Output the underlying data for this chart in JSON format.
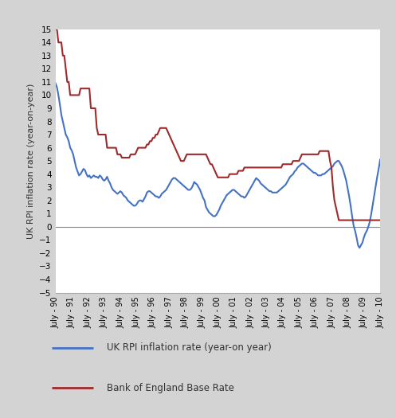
{
  "ylabel": "UK RPI inflation rate (year-on-year)",
  "plot_bg_color": "#ffffff",
  "outer_bg_color": "#d3d3d3",
  "rpi_color": "#4472C4",
  "boe_color": "#9E2A2B",
  "ylim": [
    -5,
    15
  ],
  "yticks": [
    -5,
    -4,
    -3,
    -2,
    -1,
    0,
    1,
    2,
    3,
    4,
    5,
    6,
    7,
    8,
    9,
    10,
    11,
    12,
    13,
    14,
    15
  ],
  "xtick_labels": [
    "July - 90",
    "July - 91",
    "July - 92",
    "July - 93",
    "July - 94",
    "July - 95",
    "July - 96",
    "July - 97",
    "July - 98",
    "July - 99",
    "July - 00",
    "July - 01",
    "July - 02",
    "July - 03",
    "July - 04",
    "July - 05",
    "July - 06",
    "July - 07",
    "July - 08",
    "July - 09",
    "July - 10"
  ],
  "legend_rpi": "UK RPI inflation rate (year-on year)",
  "legend_boe": "Bank of England Base Rate",
  "rpi_data": [
    10.9,
    10.6,
    10.0,
    9.3,
    8.5,
    8.0,
    7.5,
    7.0,
    6.8,
    6.5,
    6.0,
    5.8,
    5.5,
    5.0,
    4.5,
    4.2,
    3.9,
    4.0,
    4.2,
    4.4,
    4.3,
    4.0,
    3.8,
    3.9,
    3.7,
    3.8,
    3.9,
    3.8,
    3.8,
    3.7,
    3.9,
    3.8,
    3.6,
    3.5,
    3.6,
    3.8,
    3.5,
    3.3,
    3.0,
    2.8,
    2.7,
    2.6,
    2.5,
    2.6,
    2.7,
    2.6,
    2.4,
    2.3,
    2.2,
    2.0,
    1.9,
    1.8,
    1.7,
    1.6,
    1.6,
    1.7,
    1.9,
    2.0,
    2.0,
    1.9,
    2.1,
    2.3,
    2.6,
    2.7,
    2.7,
    2.6,
    2.5,
    2.4,
    2.3,
    2.3,
    2.2,
    2.3,
    2.5,
    2.6,
    2.7,
    2.8,
    3.0,
    3.2,
    3.4,
    3.6,
    3.7,
    3.7,
    3.6,
    3.5,
    3.4,
    3.3,
    3.2,
    3.1,
    3.0,
    2.9,
    2.8,
    2.8,
    2.9,
    3.1,
    3.4,
    3.3,
    3.2,
    3.0,
    2.8,
    2.5,
    2.2,
    2.0,
    1.5,
    1.3,
    1.1,
    1.0,
    0.9,
    0.8,
    0.8,
    0.9,
    1.1,
    1.3,
    1.6,
    1.8,
    2.0,
    2.2,
    2.4,
    2.5,
    2.6,
    2.7,
    2.8,
    2.8,
    2.7,
    2.6,
    2.5,
    2.4,
    2.3,
    2.3,
    2.2,
    2.3,
    2.5,
    2.7,
    2.9,
    3.1,
    3.3,
    3.5,
    3.7,
    3.6,
    3.5,
    3.3,
    3.2,
    3.1,
    3.0,
    2.9,
    2.8,
    2.7,
    2.7,
    2.6,
    2.6,
    2.6,
    2.6,
    2.7,
    2.8,
    2.9,
    3.0,
    3.1,
    3.2,
    3.4,
    3.6,
    3.8,
    3.9,
    4.0,
    4.2,
    4.3,
    4.5,
    4.6,
    4.7,
    4.8,
    4.8,
    4.7,
    4.6,
    4.5,
    4.4,
    4.3,
    4.2,
    4.1,
    4.1,
    4.0,
    3.9,
    3.9,
    3.9,
    4.0,
    4.0,
    4.1,
    4.2,
    4.3,
    4.4,
    4.5,
    4.6,
    4.8,
    4.9,
    5.0,
    5.0,
    4.8,
    4.6,
    4.3,
    3.9,
    3.5,
    2.9,
    2.3,
    1.6,
    0.8,
    0.1,
    -0.3,
    -0.8,
    -1.4,
    -1.6,
    -1.4,
    -1.2,
    -0.8,
    -0.5,
    -0.3,
    0.0,
    0.4,
    1.0,
    1.7,
    2.4,
    3.1,
    3.8,
    4.4,
    5.1
  ],
  "boe_data": [
    15.0,
    15.0,
    14.0,
    14.0,
    14.0,
    13.0,
    13.0,
    12.0,
    11.0,
    11.0,
    10.0,
    10.0,
    10.0,
    10.0,
    10.0,
    10.0,
    10.0,
    10.5,
    10.5,
    10.5,
    10.5,
    10.5,
    10.5,
    10.5,
    9.0,
    9.0,
    9.0,
    9.0,
    7.5,
    7.0,
    7.0,
    7.0,
    7.0,
    7.0,
    7.0,
    6.0,
    6.0,
    6.0,
    6.0,
    6.0,
    6.0,
    6.0,
    5.5,
    5.5,
    5.5,
    5.25,
    5.25,
    5.25,
    5.25,
    5.25,
    5.25,
    5.5,
    5.5,
    5.5,
    5.5,
    5.75,
    6.0,
    6.0,
    6.0,
    6.0,
    6.0,
    6.0,
    6.25,
    6.25,
    6.5,
    6.5,
    6.75,
    6.75,
    7.0,
    7.0,
    7.25,
    7.5,
    7.5,
    7.5,
    7.5,
    7.5,
    7.25,
    7.0,
    6.75,
    6.5,
    6.25,
    6.0,
    5.75,
    5.5,
    5.25,
    5.0,
    5.0,
    5.0,
    5.25,
    5.5,
    5.5,
    5.5,
    5.5,
    5.5,
    5.5,
    5.5,
    5.5,
    5.5,
    5.5,
    5.5,
    5.5,
    5.5,
    5.5,
    5.25,
    5.0,
    4.75,
    4.75,
    4.5,
    4.25,
    4.0,
    3.75,
    3.75,
    3.75,
    3.75,
    3.75,
    3.75,
    3.75,
    3.75,
    4.0,
    4.0,
    4.0,
    4.0,
    4.0,
    4.0,
    4.25,
    4.25,
    4.25,
    4.25,
    4.5,
    4.5,
    4.5,
    4.5,
    4.5,
    4.5,
    4.5,
    4.5,
    4.5,
    4.5,
    4.5,
    4.5,
    4.5,
    4.5,
    4.5,
    4.5,
    4.5,
    4.5,
    4.5,
    4.5,
    4.5,
    4.5,
    4.5,
    4.5,
    4.5,
    4.5,
    4.75,
    4.75,
    4.75,
    4.75,
    4.75,
    4.75,
    4.75,
    5.0,
    5.0,
    5.0,
    5.0,
    5.0,
    5.25,
    5.5,
    5.5,
    5.5,
    5.5,
    5.5,
    5.5,
    5.5,
    5.5,
    5.5,
    5.5,
    5.5,
    5.5,
    5.75,
    5.75,
    5.75,
    5.75,
    5.75,
    5.75,
    5.75,
    5.0,
    4.5,
    3.0,
    2.0,
    1.5,
    1.0,
    0.5,
    0.5,
    0.5,
    0.5,
    0.5,
    0.5,
    0.5,
    0.5,
    0.5,
    0.5,
    0.5,
    0.5,
    0.5,
    0.5,
    0.5,
    0.5,
    0.5,
    0.5,
    0.5,
    0.5,
    0.5,
    0.5,
    0.5,
    0.5,
    0.5,
    0.5,
    0.5,
    0.5,
    0.5
  ]
}
